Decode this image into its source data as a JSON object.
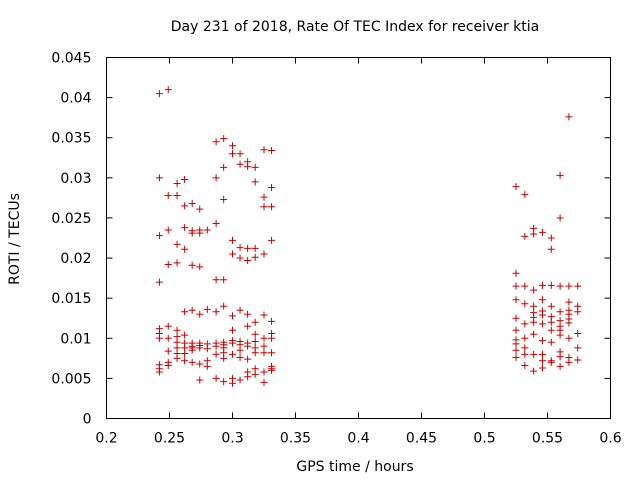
{
  "chart_data": {
    "type": "scatter",
    "title": "Day 231 of 2018, Rate Of TEC Index for receiver ktia",
    "xlabel": "GPS time / hours",
    "ylabel": "ROTI / TECUs",
    "xlim": [
      0.2,
      0.6
    ],
    "ylim": [
      0,
      0.045
    ],
    "x_ticks": [
      0.2,
      0.25,
      0.3,
      0.35,
      0.4,
      0.45,
      0.5,
      0.55,
      0.6
    ],
    "x_tick_labels": [
      "0.2",
      "0.25",
      "0.3",
      "0.35",
      "0.4",
      "0.45",
      "0.5",
      "0.55",
      "0.6"
    ],
    "y_ticks": [
      0,
      0.005,
      0.01,
      0.015,
      0.02,
      0.025,
      0.03,
      0.035,
      0.04,
      0.045
    ],
    "y_tick_labels": [
      "0",
      "0.005",
      "0.01",
      "0.015",
      "0.02",
      "0.025",
      "0.03",
      "0.035",
      "0.04",
      "0.045"
    ],
    "grid": false,
    "legend": "none",
    "marker": "+",
    "series": [
      {
        "name": "ROTI",
        "color": "#cc0000",
        "points": [
          [
            0.242,
            0.0405
          ],
          [
            0.249,
            0.041
          ],
          [
            0.242,
            0.03
          ],
          [
            0.242,
            0.0228
          ],
          [
            0.242,
            0.017
          ],
          [
            0.242,
            0.0112
          ],
          [
            0.242,
            0.0106
          ],
          [
            0.242,
            0.01
          ],
          [
            0.242,
            0.0067
          ],
          [
            0.242,
            0.0062
          ],
          [
            0.242,
            0.0058
          ],
          [
            0.249,
            0.0278
          ],
          [
            0.249,
            0.0235
          ],
          [
            0.249,
            0.0192
          ],
          [
            0.249,
            0.0115
          ],
          [
            0.249,
            0.01
          ],
          [
            0.249,
            0.0084
          ],
          [
            0.249,
            0.007
          ],
          [
            0.249,
            0.0066
          ],
          [
            0.256,
            0.0293
          ],
          [
            0.256,
            0.0278
          ],
          [
            0.256,
            0.0217
          ],
          [
            0.256,
            0.0194
          ],
          [
            0.256,
            0.011
          ],
          [
            0.256,
            0.0102
          ],
          [
            0.256,
            0.0095
          ],
          [
            0.256,
            0.0088
          ],
          [
            0.256,
            0.0081
          ],
          [
            0.256,
            0.0075
          ],
          [
            0.262,
            0.0298
          ],
          [
            0.262,
            0.0265
          ],
          [
            0.262,
            0.0238
          ],
          [
            0.262,
            0.0211
          ],
          [
            0.262,
            0.0133
          ],
          [
            0.262,
            0.0104
          ],
          [
            0.262,
            0.0094
          ],
          [
            0.262,
            0.0088
          ],
          [
            0.262,
            0.0081
          ],
          [
            0.262,
            0.0072
          ],
          [
            0.268,
            0.0268
          ],
          [
            0.268,
            0.0234
          ],
          [
            0.268,
            0.0231
          ],
          [
            0.268,
            0.0191
          ],
          [
            0.268,
            0.0135
          ],
          [
            0.268,
            0.0094
          ],
          [
            0.268,
            0.009
          ],
          [
            0.268,
            0.0088
          ],
          [
            0.268,
            0.0085
          ],
          [
            0.268,
            0.007
          ],
          [
            0.274,
            0.0261
          ],
          [
            0.274,
            0.0235
          ],
          [
            0.274,
            0.0231
          ],
          [
            0.274,
            0.0189
          ],
          [
            0.274,
            0.013
          ],
          [
            0.274,
            0.0094
          ],
          [
            0.274,
            0.0091
          ],
          [
            0.274,
            0.0088
          ],
          [
            0.274,
            0.0068
          ],
          [
            0.274,
            0.0048
          ],
          [
            0.28,
            0.0235
          ],
          [
            0.28,
            0.0136
          ],
          [
            0.28,
            0.0093
          ],
          [
            0.28,
            0.0087
          ],
          [
            0.28,
            0.0072
          ],
          [
            0.28,
            0.0065
          ],
          [
            0.287,
            0.0345
          ],
          [
            0.287,
            0.03
          ],
          [
            0.287,
            0.0243
          ],
          [
            0.287,
            0.0173
          ],
          [
            0.287,
            0.0133
          ],
          [
            0.287,
            0.0094
          ],
          [
            0.287,
            0.009
          ],
          [
            0.287,
            0.008
          ],
          [
            0.287,
            0.005
          ],
          [
            0.293,
            0.0349
          ],
          [
            0.293,
            0.0313
          ],
          [
            0.293,
            0.0273
          ],
          [
            0.293,
            0.0173
          ],
          [
            0.293,
            0.014
          ],
          [
            0.293,
            0.0095
          ],
          [
            0.293,
            0.0092
          ],
          [
            0.293,
            0.0088
          ],
          [
            0.293,
            0.0082
          ],
          [
            0.293,
            0.0075
          ],
          [
            0.293,
            0.0046
          ],
          [
            0.3,
            0.034
          ],
          [
            0.3,
            0.033
          ],
          [
            0.3,
            0.0222
          ],
          [
            0.3,
            0.0205
          ],
          [
            0.3,
            0.0128
          ],
          [
            0.3,
            0.011
          ],
          [
            0.3,
            0.0097
          ],
          [
            0.3,
            0.0094
          ],
          [
            0.3,
            0.008
          ],
          [
            0.3,
            0.005
          ],
          [
            0.3,
            0.0044
          ],
          [
            0.306,
            0.033
          ],
          [
            0.306,
            0.0317
          ],
          [
            0.306,
            0.0213
          ],
          [
            0.306,
            0.02
          ],
          [
            0.306,
            0.0135
          ],
          [
            0.306,
            0.0096
          ],
          [
            0.306,
            0.0092
          ],
          [
            0.306,
            0.0085
          ],
          [
            0.306,
            0.0076
          ],
          [
            0.306,
            0.0048
          ],
          [
            0.312,
            0.032
          ],
          [
            0.312,
            0.0314
          ],
          [
            0.312,
            0.0212
          ],
          [
            0.312,
            0.0197
          ],
          [
            0.312,
            0.013
          ],
          [
            0.312,
            0.0115
          ],
          [
            0.312,
            0.0094
          ],
          [
            0.312,
            0.009
          ],
          [
            0.312,
            0.0074
          ],
          [
            0.312,
            0.0058
          ],
          [
            0.312,
            0.0052
          ],
          [
            0.318,
            0.0313
          ],
          [
            0.318,
            0.0295
          ],
          [
            0.318,
            0.0212
          ],
          [
            0.318,
            0.0201
          ],
          [
            0.318,
            0.012
          ],
          [
            0.318,
            0.0105
          ],
          [
            0.318,
            0.0096
          ],
          [
            0.318,
            0.0088
          ],
          [
            0.318,
            0.0082
          ],
          [
            0.318,
            0.0062
          ],
          [
            0.318,
            0.0055
          ],
          [
            0.325,
            0.0335
          ],
          [
            0.325,
            0.0276
          ],
          [
            0.325,
            0.0264
          ],
          [
            0.325,
            0.0205
          ],
          [
            0.325,
            0.0129
          ],
          [
            0.325,
            0.01
          ],
          [
            0.325,
            0.009
          ],
          [
            0.325,
            0.0082
          ],
          [
            0.325,
            0.0058
          ],
          [
            0.325,
            0.0045
          ],
          [
            0.331,
            0.0334
          ],
          [
            0.331,
            0.0288
          ],
          [
            0.331,
            0.0264
          ],
          [
            0.331,
            0.0222
          ],
          [
            0.331,
            0.0121
          ],
          [
            0.331,
            0.0106
          ],
          [
            0.331,
            0.01
          ],
          [
            0.331,
            0.0082
          ],
          [
            0.331,
            0.0065
          ],
          [
            0.331,
            0.0062
          ],
          [
            0.331,
            0.006
          ],
          [
            0.525,
            0.0289
          ],
          [
            0.525,
            0.0181
          ],
          [
            0.525,
            0.0165
          ],
          [
            0.525,
            0.0148
          ],
          [
            0.525,
            0.0125
          ],
          [
            0.525,
            0.011
          ],
          [
            0.525,
            0.0098
          ],
          [
            0.525,
            0.0093
          ],
          [
            0.525,
            0.0085
          ],
          [
            0.525,
            0.0076
          ],
          [
            0.532,
            0.0279
          ],
          [
            0.532,
            0.0227
          ],
          [
            0.532,
            0.0165
          ],
          [
            0.532,
            0.0143
          ],
          [
            0.532,
            0.0118
          ],
          [
            0.532,
            0.01
          ],
          [
            0.532,
            0.0088
          ],
          [
            0.532,
            0.008
          ],
          [
            0.532,
            0.0066
          ],
          [
            0.539,
            0.0237
          ],
          [
            0.539,
            0.023
          ],
          [
            0.539,
            0.016
          ],
          [
            0.539,
            0.014
          ],
          [
            0.539,
            0.0132
          ],
          [
            0.539,
            0.0126
          ],
          [
            0.539,
            0.012
          ],
          [
            0.539,
            0.0105
          ],
          [
            0.539,
            0.008
          ],
          [
            0.539,
            0.0059
          ],
          [
            0.546,
            0.0232
          ],
          [
            0.546,
            0.0166
          ],
          [
            0.546,
            0.0148
          ],
          [
            0.546,
            0.0134
          ],
          [
            0.546,
            0.0129
          ],
          [
            0.546,
            0.0118
          ],
          [
            0.546,
            0.0097
          ],
          [
            0.546,
            0.008
          ],
          [
            0.546,
            0.0072
          ],
          [
            0.546,
            0.0063
          ],
          [
            0.553,
            0.0225
          ],
          [
            0.553,
            0.0211
          ],
          [
            0.553,
            0.0166
          ],
          [
            0.553,
            0.014
          ],
          [
            0.553,
            0.0127
          ],
          [
            0.553,
            0.012
          ],
          [
            0.553,
            0.011
          ],
          [
            0.553,
            0.0095
          ],
          [
            0.553,
            0.0072
          ],
          [
            0.553,
            0.007
          ],
          [
            0.56,
            0.0303
          ],
          [
            0.56,
            0.025
          ],
          [
            0.56,
            0.0165
          ],
          [
            0.56,
            0.0133
          ],
          [
            0.56,
            0.0122
          ],
          [
            0.56,
            0.0115
          ],
          [
            0.56,
            0.011
          ],
          [
            0.56,
            0.0104
          ],
          [
            0.56,
            0.0083
          ],
          [
            0.56,
            0.0077
          ],
          [
            0.56,
            0.0065
          ],
          [
            0.567,
            0.0376
          ],
          [
            0.567,
            0.0165
          ],
          [
            0.567,
            0.0145
          ],
          [
            0.567,
            0.0135
          ],
          [
            0.567,
            0.013
          ],
          [
            0.567,
            0.0124
          ],
          [
            0.567,
            0.0119
          ],
          [
            0.567,
            0.01
          ],
          [
            0.567,
            0.0076
          ],
          [
            0.567,
            0.007
          ],
          [
            0.574,
            0.0165
          ],
          [
            0.574,
            0.014
          ],
          [
            0.574,
            0.0133
          ],
          [
            0.574,
            0.0106
          ],
          [
            0.574,
            0.0088
          ],
          [
            0.574,
            0.0073
          ]
        ]
      }
    ]
  }
}
